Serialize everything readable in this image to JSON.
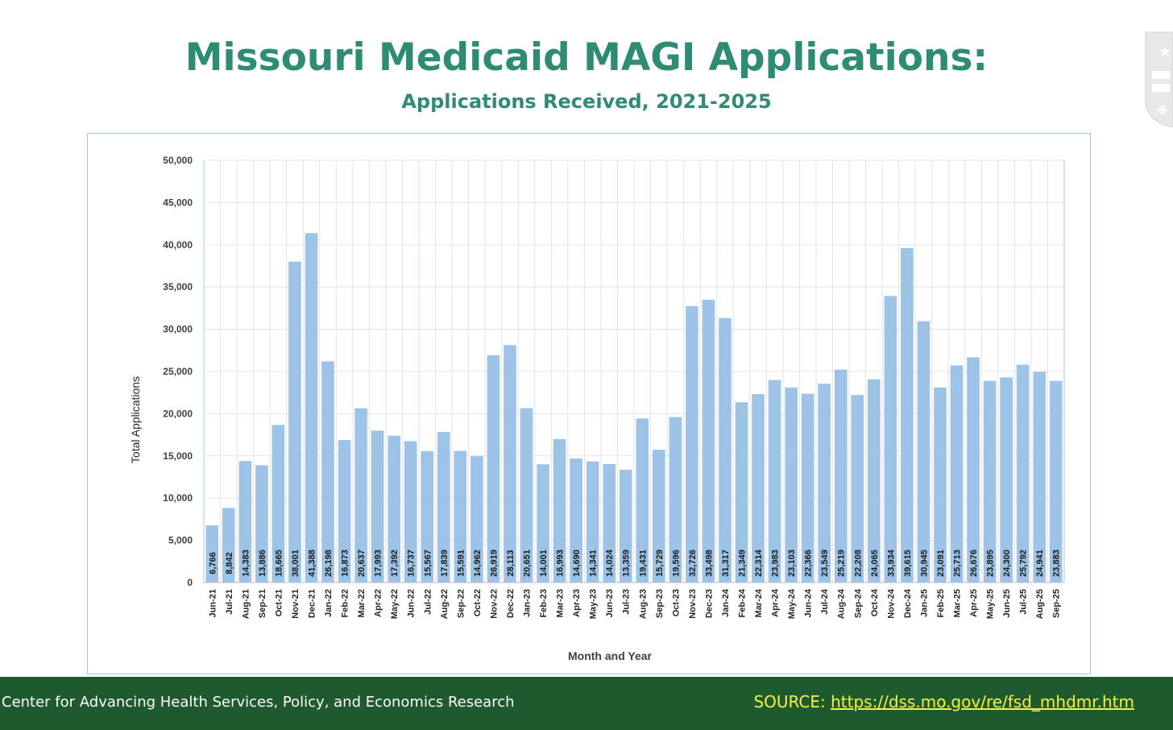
{
  "header": {
    "title": "Missouri Medicaid MAGI Applications:",
    "subtitle": "Applications Received, 2021-2025"
  },
  "footer": {
    "org": "Center for Advancing Health Services, Policy, and Economics Research",
    "source_label": "SOURCE: ",
    "source_url": "https://dss.mo.gov/re/fsd_mhdmr.htm"
  },
  "colors": {
    "title": "#2e8b74",
    "bar": "#9dc3e6",
    "footer_bg": "#1f5a2e",
    "footer_source": "#f2f24a"
  },
  "logo": {
    "name": "state-shield-logo"
  },
  "chart_data": {
    "type": "bar",
    "title": "Missouri Medicaid MAGI Applications:",
    "subtitle": "Applications Received, 2021-2025",
    "xlabel": "Month and Year",
    "ylabel": "Total Applications",
    "ylim": [
      0,
      50000
    ],
    "yticks": [
      0,
      5000,
      10000,
      15000,
      20000,
      25000,
      30000,
      35000,
      40000,
      45000,
      50000
    ],
    "ytick_labels": [
      "0",
      "5,000",
      "10,000",
      "15,000",
      "20,000",
      "25,000",
      "30,000",
      "35,000",
      "40,000",
      "45,000",
      "50,000"
    ],
    "grid": true,
    "categories": [
      "Jun-21",
      "Jul-21",
      "Aug-21",
      "Sep-21",
      "Oct-21",
      "Nov-21",
      "Dec-21",
      "Jan-22",
      "Feb-22",
      "Mar-22",
      "Apr-22",
      "May-22",
      "Jun-22",
      "Jul-22",
      "Aug-22",
      "Sep-22",
      "Oct-22",
      "Nov-22",
      "Dec-22",
      "Jan-23",
      "Feb-23",
      "Mar-23",
      "Apr-23",
      "May-23",
      "Jun-23",
      "Jul-23",
      "Aug-23",
      "Sep-23",
      "Oct-23",
      "Nov-23",
      "Dec-23",
      "Jan-24",
      "Feb-24",
      "Mar-24",
      "Apr-24",
      "May-24",
      "Jun-24",
      "Jul-24",
      "Aug-24",
      "Sep-24",
      "Oct-24",
      "Nov-24",
      "Dec-24",
      "Jan-25",
      "Feb-25",
      "Mar-25",
      "Apr-25",
      "May-25",
      "Jun-25",
      "Jul-25",
      "Aug-25",
      "Sep-25"
    ],
    "values": [
      6766,
      8842,
      14383,
      13886,
      18665,
      38001,
      41388,
      26198,
      16873,
      20637,
      17993,
      17392,
      16737,
      15567,
      17839,
      15591,
      14962,
      26919,
      28113,
      20651,
      14001,
      16993,
      14690,
      14341,
      14024,
      13359,
      19431,
      15729,
      19596,
      32726,
      33498,
      31317,
      21349,
      22314,
      23983,
      23103,
      22366,
      23549,
      25219,
      22208,
      24065,
      33934,
      39615,
      30945,
      23091,
      25713,
      26676,
      23895,
      24300,
      25792,
      24941,
      23883
    ],
    "data_labels": [
      "6,766",
      "8,842",
      "14,383",
      "13,886",
      "18,665",
      "38,001",
      "41,388",
      "26,198",
      "16,873",
      "20,637",
      "17,993",
      "17,392",
      "16,737",
      "15,567",
      "17,839",
      "15,591",
      "14,962",
      "26,919",
      "28,113",
      "20,651",
      "14,001",
      "16,993",
      "14,690",
      "14,341",
      "14,024",
      "13,359",
      "19,431",
      "15,729",
      "19,596",
      "32,726",
      "33,498",
      "31,317",
      "21,349",
      "22,314",
      "23,983",
      "23,103",
      "22,366",
      "23,549",
      "25,219",
      "22,208",
      "24,065",
      "33,934",
      "39,615",
      "30,945",
      "23,091",
      "25,713",
      "26,676",
      "23,895",
      "24,300",
      "25,792",
      "24,941",
      "23,883"
    ]
  }
}
